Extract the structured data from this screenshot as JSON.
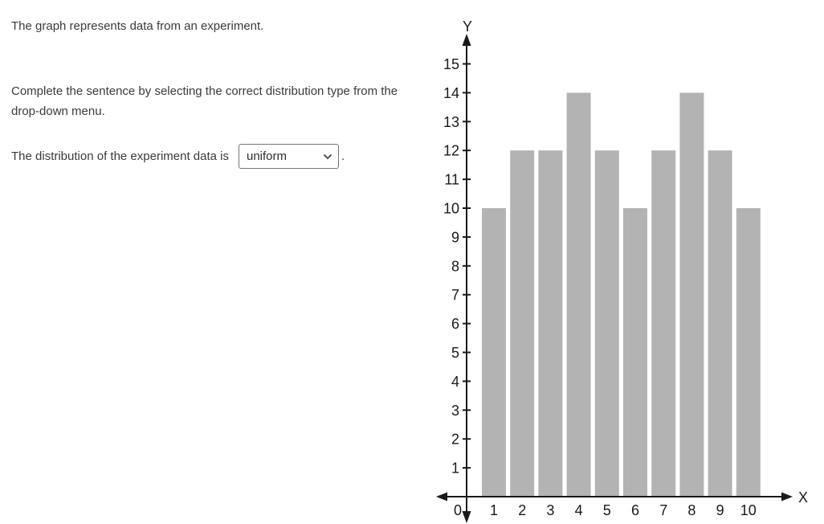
{
  "colors": {
    "background": "#ffffff",
    "body_text": "#3b3b3b",
    "select_border": "#767676",
    "chevron": "#444444",
    "axis": "#1a1a1a",
    "chart_text": "#1a1a1a",
    "bar_fill": "#b3b3b3"
  },
  "question": {
    "intro": "The graph represents data from an experiment.",
    "instruction": "Complete the sentence by selecting the correct distribution type from the drop-down menu.",
    "sentence_prefix": "The distribution of the experiment data is",
    "sentence_suffix": ".",
    "dropdown": {
      "selected": "uniform"
    }
  },
  "chart_data": {
    "type": "bar",
    "title": "",
    "xlabel": "X",
    "ylabel": "Y",
    "categories": [
      "1",
      "2",
      "3",
      "4",
      "5",
      "6",
      "7",
      "8",
      "9",
      "10"
    ],
    "values": [
      10,
      12,
      12,
      14,
      12,
      10,
      12,
      14,
      12,
      10
    ],
    "ylim": [
      0,
      15
    ],
    "yticks": [
      1,
      2,
      3,
      4,
      5,
      6,
      7,
      8,
      9,
      10,
      11,
      12,
      13,
      14,
      15
    ],
    "origin_label": "0",
    "grid": false,
    "legend": false,
    "bar_color": "#b3b3b3"
  }
}
